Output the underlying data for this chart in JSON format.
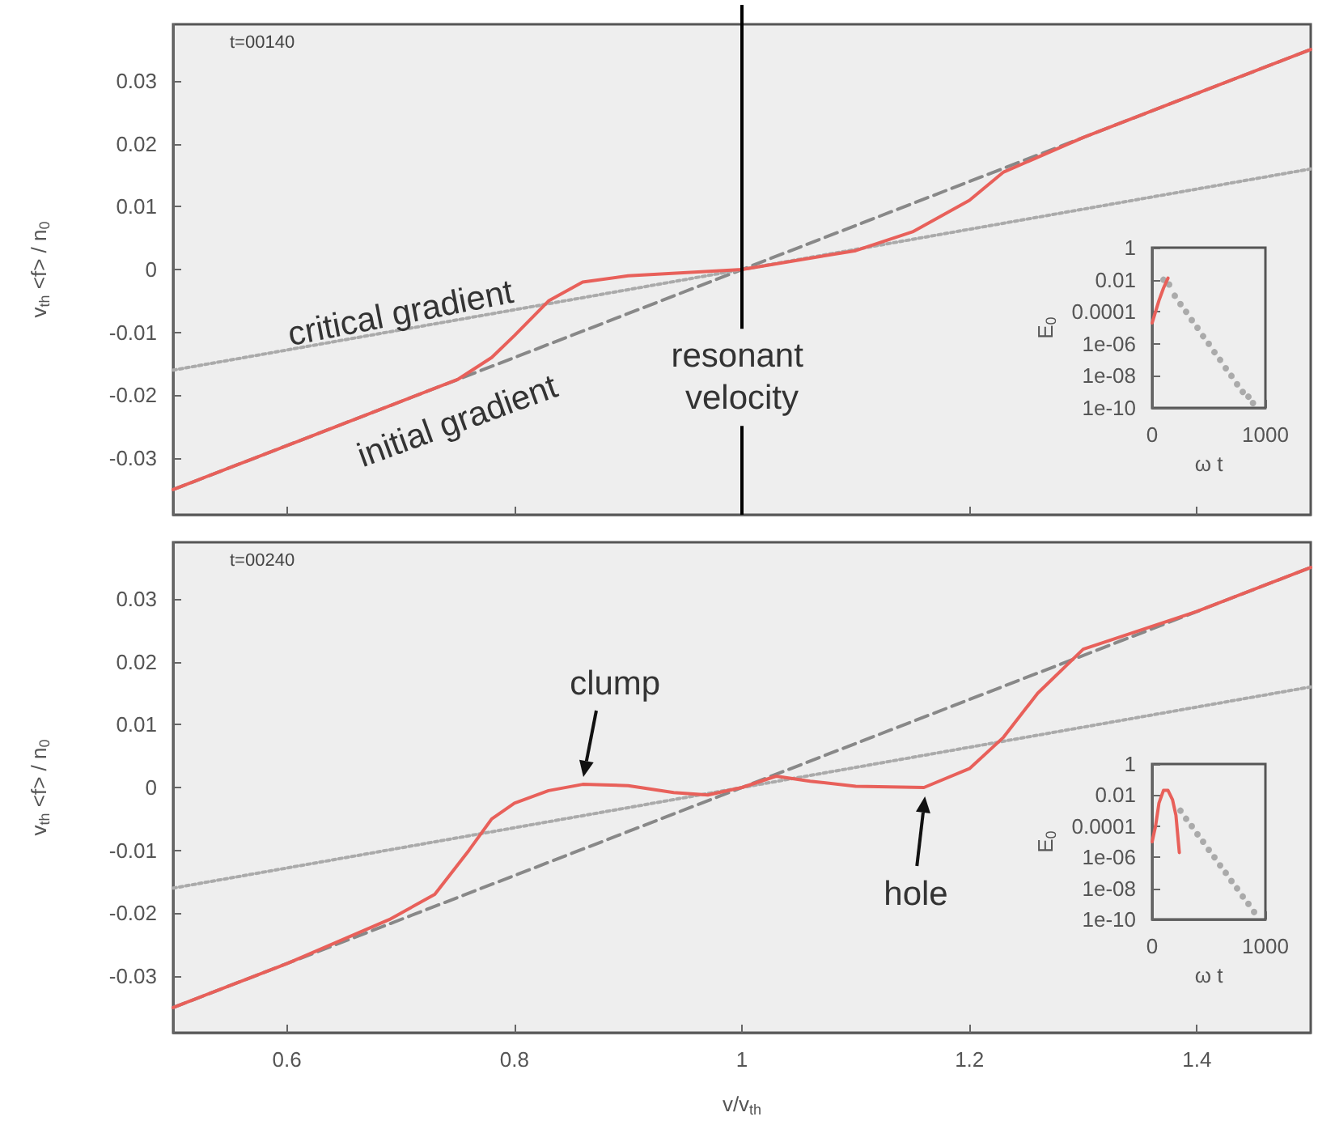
{
  "chart_data": [
    {
      "type": "line",
      "annotations": [
        "t=00140",
        "critical gradient",
        "initial gradient"
      ],
      "ylabel": "v$_{th}$ <f> / n$_{0}$",
      "xlim": [
        0.5,
        1.5
      ],
      "xticks": [
        0.6,
        0.8,
        1,
        1.2,
        1.4
      ],
      "ylim": [
        -0.039,
        0.039
      ],
      "yticks": [
        -0.03,
        -0.02,
        -0.01,
        0,
        0.01,
        0.02,
        0.03
      ],
      "tick_labels": "y",
      "grid": false,
      "marker": "none",
      "ref_lines": [
        {
          "axis": "x",
          "value": 1,
          "label": "resonant velocity",
          "color": "#000000"
        }
      ],
      "series": [
        {
          "x": [
            0.5,
            1.5
          ],
          "values": [
            -0.035,
            0.035
          ],
          "color": "#888888",
          "line_style": "dashed"
        },
        {
          "x": [
            0.5,
            1.5
          ],
          "values": [
            -0.016,
            0.016
          ],
          "color": "#aaaaaa",
          "line_style": "dotted"
        },
        {
          "x": [
            0.5,
            0.6,
            0.7,
            0.75,
            0.78,
            0.8,
            0.83,
            0.86,
            0.9,
            1.0,
            1.1,
            1.15,
            1.2,
            1.23,
            1.3,
            1.4,
            1.5
          ],
          "values": [
            -0.035,
            -0.028,
            -0.021,
            -0.0175,
            -0.014,
            -0.0105,
            -0.005,
            -0.002,
            -0.001,
            0,
            0.003,
            0.006,
            0.011,
            0.0155,
            0.021,
            0.028,
            0.035
          ],
          "color": "#e8605a",
          "line_style": "solid"
        }
      ]
    },
    {
      "type": "scatter",
      "xlabel": "ω t",
      "ylabel": "E$_{0}$",
      "log": "y",
      "xlim": [
        0,
        1000
      ],
      "xticks": [
        0,
        1000
      ],
      "ylim": [
        1e-10,
        1
      ],
      "yticks": [
        {
          "value": 1e-10,
          "label": "1e-10"
        },
        {
          "value": 1e-08,
          "label": "1e-08"
        },
        {
          "value": 1e-06,
          "label": "1e-06"
        },
        0.0001,
        0.01,
        1
      ],
      "grid": false,
      "marker": "circle",
      "series": [
        {
          "x": [
            100,
            150,
            200,
            250,
            300,
            350,
            400,
            450,
            500,
            550,
            600,
            650,
            700,
            750,
            800,
            850,
            890
          ],
          "values": [
            0.01,
            0.005,
            0.001,
            0.0003,
            0.0001,
            3e-05,
            1e-05,
            3e-06,
            1e-06,
            3e-07,
            1e-07,
            3e-08,
            1e-08,
            3e-09,
            1e-09,
            5e-10,
            2e-10
          ],
          "color": "#999999"
        },
        {
          "type": "line",
          "marker": "none",
          "x": [
            0,
            30,
            60,
            100,
            140
          ],
          "values": [
            2e-05,
            0.0001,
            0.0005,
            0.003,
            0.0126
          ],
          "color": "#e8605a"
        }
      ]
    },
    {
      "type": "line",
      "annotations": [
        "t=00240",
        {
          "text": "clump",
          "x": 0.86,
          "y": 0.0005
        },
        {
          "text": "hole",
          "x": 1.16,
          "y": 0
        }
      ],
      "xlabel": "v/v$_{th}$",
      "ylabel": "v$_{th}$ <f> / n$_{0}$",
      "xlim": [
        0.5,
        1.5
      ],
      "xticks": [
        0.6,
        0.8,
        1,
        1.2,
        1.4
      ],
      "ylim": [
        -0.039,
        0.039
      ],
      "yticks": [
        -0.03,
        -0.02,
        -0.01,
        0,
        0.01,
        0.02,
        0.03
      ],
      "grid": false,
      "marker": "none",
      "series": [
        {
          "x": [
            0.5,
            1.5
          ],
          "values": [
            -0.035,
            0.035
          ],
          "color": "#888888",
          "line_style": "dashed"
        },
        {
          "x": [
            0.5,
            1.5
          ],
          "values": [
            -0.016,
            0.016
          ],
          "color": "#aaaaaa",
          "line_style": "dotted"
        },
        {
          "x": [
            0.5,
            0.6,
            0.69,
            0.73,
            0.76,
            0.78,
            0.8,
            0.83,
            0.86,
            0.9,
            0.94,
            0.97,
            1.0,
            1.03,
            1.06,
            1.1,
            1.16,
            1.2,
            1.23,
            1.26,
            1.3,
            1.4,
            1.5
          ],
          "values": [
            -0.035,
            -0.028,
            -0.021,
            -0.017,
            -0.01,
            -0.005,
            -0.0025,
            -0.0005,
            0.0005,
            0.0003,
            -0.0008,
            -0.0012,
            0,
            0.0018,
            0.001,
            0.0002,
            0,
            0.003,
            0.008,
            0.015,
            0.022,
            0.028,
            0.035
          ],
          "color": "#e8605a",
          "line_style": "solid"
        }
      ]
    },
    {
      "type": "scatter",
      "xlabel": "ω t",
      "ylabel": "E$_{0}$",
      "log": "y",
      "xlim": [
        0,
        1000
      ],
      "xticks": [
        0,
        1000
      ],
      "ylim": [
        1e-10,
        1
      ],
      "yticks": [
        {
          "value": 1e-10,
          "label": "1e-10"
        },
        {
          "value": 1e-08,
          "label": "1e-08"
        },
        {
          "value": 1e-06,
          "label": "1e-06"
        },
        0.0001,
        0.01,
        1
      ],
      "grid": false,
      "marker": "circle",
      "series": [
        {
          "x": [
            250,
            300,
            350,
            400,
            450,
            500,
            550,
            600,
            650,
            700,
            750,
            800,
            850,
            900
          ],
          "values": [
            0.001,
            0.0003,
            0.0001,
            3e-05,
            1e-05,
            3e-06,
            1e-06,
            3e-07,
            1e-07,
            3e-08,
            1e-08,
            3e-09,
            1e-09,
            3e-10
          ],
          "color": "#999999"
        },
        {
          "type": "line",
          "marker": "none",
          "x": [
            0,
            30,
            60,
            100,
            140,
            180,
            210,
            240
          ],
          "values": [
            1e-05,
            0.0001,
            0.003,
            0.02,
            0.02,
            0.005,
            0.0005,
            2e-06
          ],
          "color": "#e8605a"
        }
      ]
    }
  ]
}
